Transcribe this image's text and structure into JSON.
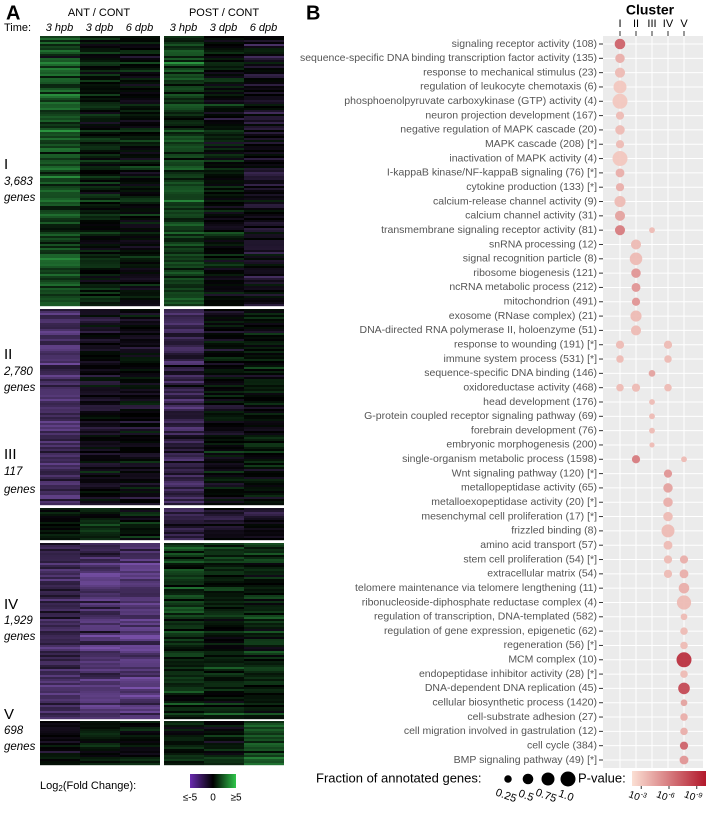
{
  "panel_a": {
    "label": "A",
    "groups": [
      "ANT / CONT",
      "POST / CONT"
    ],
    "time_label": "Time:",
    "times": [
      "3 hpb",
      "3 dpb",
      "6 dpb",
      "3 hpb",
      "3 dpb",
      "6 dpb"
    ],
    "clusters": [
      {
        "name": "I",
        "count": "3,683",
        "unit": "genes"
      },
      {
        "name": "II",
        "count": "2,780",
        "unit": "genes"
      },
      {
        "name": "III",
        "count": "117",
        "unit": "genes"
      },
      {
        "name": "IV",
        "count": "1,929",
        "unit": "genes"
      },
      {
        "name": "V",
        "count": "698",
        "unit": "genes"
      }
    ],
    "legend": {
      "label_main": "Log",
      "label_sub": "2",
      "label_rest": "(Fold Change):",
      "ticks": [
        "≤-5",
        "0",
        "≥5"
      ]
    }
  },
  "panel_b": {
    "label": "B",
    "title": "Cluster",
    "clusters": [
      "I",
      "II",
      "III",
      "IV",
      "V"
    ],
    "terms": [
      {
        "name": "signaling receptor activity (108)",
        "dots": [
          {
            "cluster": "I",
            "fraction": 0.5,
            "neg_log_p": 7
          }
        ]
      },
      {
        "name": "sequence-specific DNA binding transcription factor activity (135)",
        "dots": [
          {
            "cluster": "I",
            "fraction": 0.4,
            "neg_log_p": 4
          }
        ]
      },
      {
        "name": "response to mechanical stimulus (23)",
        "dots": [
          {
            "cluster": "I",
            "fraction": 0.45,
            "neg_log_p": 3.5
          }
        ]
      },
      {
        "name": "regulation of leukocyte chemotaxis (6)",
        "dots": [
          {
            "cluster": "I",
            "fraction": 0.75,
            "neg_log_p": 3
          }
        ]
      },
      {
        "name": "phosphoenolpyruvate carboxykinase (GTP) activity (4)",
        "dots": [
          {
            "cluster": "I",
            "fraction": 1,
            "neg_log_p": 3
          }
        ]
      },
      {
        "name": "neuron projection development (167)",
        "dots": [
          {
            "cluster": "I",
            "fraction": 0.3,
            "neg_log_p": 3.5
          }
        ]
      },
      {
        "name": "negative regulation of MAPK cascade (20)",
        "dots": [
          {
            "cluster": "I",
            "fraction": 0.4,
            "neg_log_p": 3.5
          }
        ]
      },
      {
        "name": "MAPK cascade (208) [*]",
        "dots": [
          {
            "cluster": "I",
            "fraction": 0.3,
            "neg_log_p": 3.5
          }
        ]
      },
      {
        "name": "inactivation of MAPK activity (4)",
        "dots": [
          {
            "cluster": "I",
            "fraction": 1,
            "neg_log_p": 3
          }
        ]
      },
      {
        "name": "I-kappaB kinase/NF-kappaB signaling (76) [*]",
        "dots": [
          {
            "cluster": "I",
            "fraction": 0.35,
            "neg_log_p": 4
          }
        ]
      },
      {
        "name": "cytokine production (133) [*]",
        "dots": [
          {
            "cluster": "I",
            "fraction": 0.3,
            "neg_log_p": 4
          }
        ]
      },
      {
        "name": "calcium-release channel activity (9)",
        "dots": [
          {
            "cluster": "I",
            "fraction": 0.55,
            "neg_log_p": 3.5
          }
        ]
      },
      {
        "name": "calcium channel activity (31)",
        "dots": [
          {
            "cluster": "I",
            "fraction": 0.45,
            "neg_log_p": 4.5
          }
        ]
      },
      {
        "name": "transmembrane signaling receptor activity (81)",
        "dots": [
          {
            "cluster": "I",
            "fraction": 0.45,
            "neg_log_p": 6
          },
          {
            "cluster": "III",
            "fraction": 0.15,
            "neg_log_p": 3.5
          }
        ]
      },
      {
        "name": "snRNA processing (12)",
        "dots": [
          {
            "cluster": "II",
            "fraction": 0.45,
            "neg_log_p": 3.5
          }
        ]
      },
      {
        "name": "signal recognition particle (8)",
        "dots": [
          {
            "cluster": "II",
            "fraction": 0.7,
            "neg_log_p": 3.5
          }
        ]
      },
      {
        "name": "ribosome biogenesis (121)",
        "dots": [
          {
            "cluster": "II",
            "fraction": 0.4,
            "neg_log_p": 5
          }
        ]
      },
      {
        "name": "ncRNA metabolic process (212)",
        "dots": [
          {
            "cluster": "II",
            "fraction": 0.35,
            "neg_log_p": 5
          }
        ]
      },
      {
        "name": "mitochondrion (491)",
        "dots": [
          {
            "cluster": "II",
            "fraction": 0.3,
            "neg_log_p": 5
          }
        ]
      },
      {
        "name": "exosome (RNase complex) (21)",
        "dots": [
          {
            "cluster": "II",
            "fraction": 0.55,
            "neg_log_p": 3.5
          }
        ]
      },
      {
        "name": "DNA-directed RNA polymerase II, holoenzyme (51)",
        "dots": [
          {
            "cluster": "II",
            "fraction": 0.45,
            "neg_log_p": 3.5
          }
        ]
      },
      {
        "name": "response to wounding (191) [*]",
        "dots": [
          {
            "cluster": "I",
            "fraction": 0.3,
            "neg_log_p": 3.5
          },
          {
            "cluster": "IV",
            "fraction": 0.3,
            "neg_log_p": 3.5
          }
        ]
      },
      {
        "name": "immune system process (531) [*]",
        "dots": [
          {
            "cluster": "I",
            "fraction": 0.25,
            "neg_log_p": 3.5
          },
          {
            "cluster": "IV",
            "fraction": 0.25,
            "neg_log_p": 3.5
          }
        ]
      },
      {
        "name": "sequence-specific DNA binding (146)",
        "dots": [
          {
            "cluster": "III",
            "fraction": 0.2,
            "neg_log_p": 4.5
          }
        ]
      },
      {
        "name": "oxidoreductase activity (468)",
        "dots": [
          {
            "cluster": "I",
            "fraction": 0.25,
            "neg_log_p": 3.5
          },
          {
            "cluster": "II",
            "fraction": 0.3,
            "neg_log_p": 3.5
          },
          {
            "cluster": "IV",
            "fraction": 0.25,
            "neg_log_p": 3.5
          }
        ]
      },
      {
        "name": "head development (176)",
        "dots": [
          {
            "cluster": "III",
            "fraction": 0.15,
            "neg_log_p": 3.5
          }
        ]
      },
      {
        "name": "G-protein coupled receptor signaling pathway (69)",
        "dots": [
          {
            "cluster": "III",
            "fraction": 0.15,
            "neg_log_p": 3.5
          }
        ]
      },
      {
        "name": "forebrain development (76)",
        "dots": [
          {
            "cluster": "III",
            "fraction": 0.15,
            "neg_log_p": 3.5
          }
        ]
      },
      {
        "name": "embryonic morphogenesis (200)",
        "dots": [
          {
            "cluster": "III",
            "fraction": 0.12,
            "neg_log_p": 3.5
          }
        ]
      },
      {
        "name": "single-organism metabolic process (1598)",
        "dots": [
          {
            "cluster": "II",
            "fraction": 0.3,
            "neg_log_p": 6
          },
          {
            "cluster": "V",
            "fraction": 0.15,
            "neg_log_p": 3.5
          }
        ]
      },
      {
        "name": "Wnt signaling pathway (120) [*]",
        "dots": [
          {
            "cluster": "IV",
            "fraction": 0.3,
            "neg_log_p": 5
          }
        ]
      },
      {
        "name": "metallopeptidase activity (65)",
        "dots": [
          {
            "cluster": "IV",
            "fraction": 0.4,
            "neg_log_p": 4.5
          }
        ]
      },
      {
        "name": "metalloexopeptidase activity (20) [*]",
        "dots": [
          {
            "cluster": "IV",
            "fraction": 0.4,
            "neg_log_p": 4
          }
        ]
      },
      {
        "name": "mesenchymal cell proliferation (17) [*]",
        "dots": [
          {
            "cluster": "IV",
            "fraction": 0.4,
            "neg_log_p": 3.5
          }
        ]
      },
      {
        "name": "frizzled binding (8)",
        "dots": [
          {
            "cluster": "IV",
            "fraction": 0.75,
            "neg_log_p": 3.5
          }
        ]
      },
      {
        "name": "amino acid transport (57)",
        "dots": [
          {
            "cluster": "IV",
            "fraction": 0.35,
            "neg_log_p": 3.5
          }
        ]
      },
      {
        "name": "stem cell proliferation (54) [*]",
        "dots": [
          {
            "cluster": "IV",
            "fraction": 0.3,
            "neg_log_p": 3.5
          },
          {
            "cluster": "V",
            "fraction": 0.3,
            "neg_log_p": 4
          }
        ]
      },
      {
        "name": "extracellular matrix (54)",
        "dots": [
          {
            "cluster": "IV",
            "fraction": 0.3,
            "neg_log_p": 3.5
          },
          {
            "cluster": "V",
            "fraction": 0.35,
            "neg_log_p": 4
          }
        ]
      },
      {
        "name": "telomere maintenance via telomere lengthening (11)",
        "dots": [
          {
            "cluster": "V",
            "fraction": 0.5,
            "neg_log_p": 4
          }
        ]
      },
      {
        "name": "ribonucleoside-diphosphate reductase complex (4)",
        "dots": [
          {
            "cluster": "V",
            "fraction": 0.9,
            "neg_log_p": 3.5
          }
        ]
      },
      {
        "name": "regulation of transcription, DNA-templated (582)",
        "dots": [
          {
            "cluster": "V",
            "fraction": 0.2,
            "neg_log_p": 3.5
          }
        ]
      },
      {
        "name": "regulation of gene expression, epigenetic (62)",
        "dots": [
          {
            "cluster": "V",
            "fraction": 0.25,
            "neg_log_p": 3.5
          }
        ]
      },
      {
        "name": "regeneration (56) [*]",
        "dots": [
          {
            "cluster": "V",
            "fraction": 0.25,
            "neg_log_p": 3.5
          }
        ]
      },
      {
        "name": "MCM complex (10)",
        "dots": [
          {
            "cluster": "V",
            "fraction": 1,
            "neg_log_p": 9
          }
        ]
      },
      {
        "name": "endopeptidase inhibitor activity (28) [*]",
        "dots": [
          {
            "cluster": "V",
            "fraction": 0.25,
            "neg_log_p": 3.5
          }
        ]
      },
      {
        "name": "DNA-dependent DNA replication (45)",
        "dots": [
          {
            "cluster": "V",
            "fraction": 0.6,
            "neg_log_p": 8
          }
        ]
      },
      {
        "name": "cellular biosynthetic process (1420)",
        "dots": [
          {
            "cluster": "V",
            "fraction": 0.2,
            "neg_log_p": 4.5
          }
        ]
      },
      {
        "name": "cell-substrate adhesion (27)",
        "dots": [
          {
            "cluster": "V",
            "fraction": 0.25,
            "neg_log_p": 4
          }
        ]
      },
      {
        "name": "cell migration involved in gastrulation (12)",
        "dots": [
          {
            "cluster": "V",
            "fraction": 0.25,
            "neg_log_p": 4
          }
        ]
      },
      {
        "name": "cell cycle (384)",
        "dots": [
          {
            "cluster": "V",
            "fraction": 0.3,
            "neg_log_p": 7
          }
        ]
      },
      {
        "name": "BMP signaling pathway (49) [*]",
        "dots": [
          {
            "cluster": "V",
            "fraction": 0.35,
            "neg_log_p": 5
          }
        ]
      }
    ],
    "size_legend": {
      "label": "Fraction of annotated genes:",
      "values": [
        0.25,
        0.5,
        0.75,
        {
          "value": 1,
          "label": "1.0"
        }
      ]
    },
    "color_legend": {
      "label": "P-value:",
      "lim": [
        2,
        10
      ],
      "colors": [
        "#fbe0d4",
        "#b2182b"
      ],
      "ticks": [
        {
          "value": 3,
          "base": "10",
          "exponent": "-3"
        },
        {
          "value": 6,
          "base": "10",
          "exponent": "-6"
        },
        {
          "value": 9,
          "base": "10",
          "exponent": "-9"
        }
      ]
    }
  }
}
